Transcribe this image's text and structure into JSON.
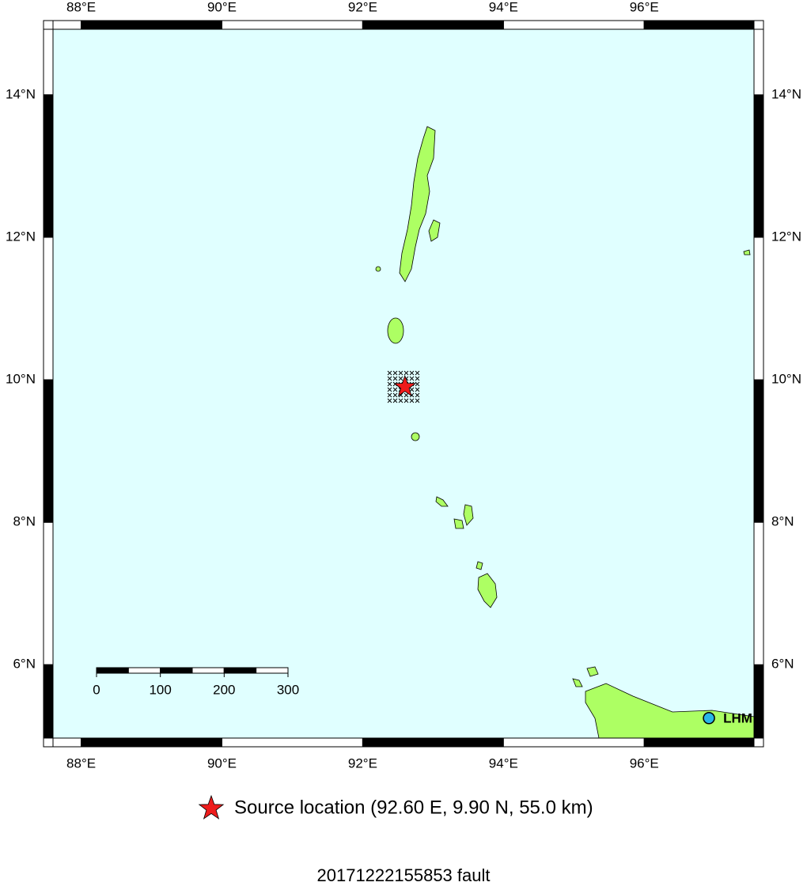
{
  "map": {
    "xlim": [
      87.6,
      97.56
    ],
    "ylim": [
      4.97,
      14.92
    ],
    "lon_ticks": [
      {
        "value": 88,
        "label": "88°E"
      },
      {
        "value": 90,
        "label": "90°E"
      },
      {
        "value": 92,
        "label": "92°E"
      },
      {
        "value": 94,
        "label": "94°E"
      },
      {
        "value": 96,
        "label": "96°E"
      }
    ],
    "lat_ticks": [
      {
        "value": 6,
        "label": "6°N"
      },
      {
        "value": 8,
        "label": "8°N"
      },
      {
        "value": 10,
        "label": "10°N"
      },
      {
        "value": 12,
        "label": "12°N"
      },
      {
        "value": 14,
        "label": "14°N"
      }
    ],
    "scale_bar": {
      "ticks": [
        0,
        100,
        200,
        300
      ]
    },
    "source": {
      "lon": 92.6,
      "lat": 9.9,
      "color": "#ee1c1c",
      "label": "Source location (92.60 E, 9.90 N, 55.0 km)"
    },
    "station": {
      "name": "LHM",
      "lon": 96.92,
      "lat": 5.25,
      "color": "#29b6e8"
    },
    "title": "20171222155853 fault"
  }
}
